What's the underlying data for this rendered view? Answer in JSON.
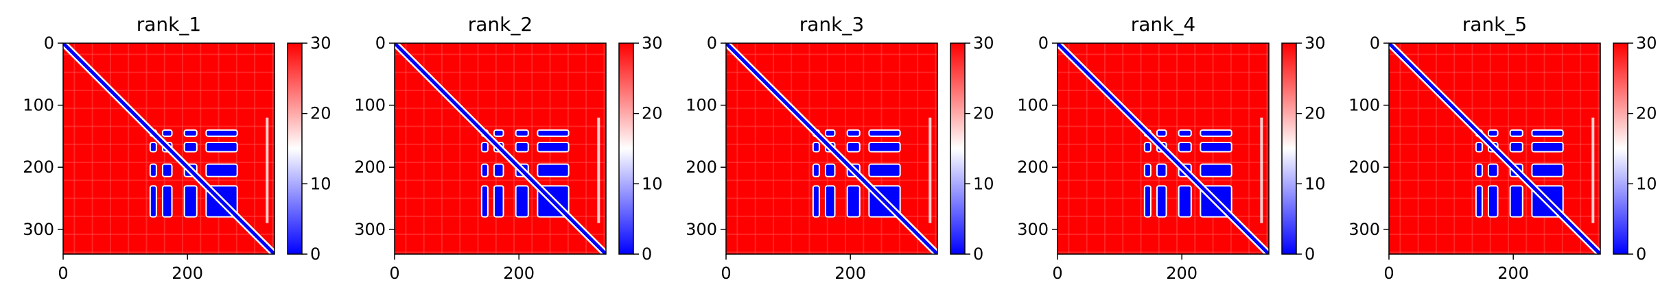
{
  "chart_data": [
    {
      "type": "heatmap",
      "title": "rank_1",
      "xticks": [
        "0",
        "200"
      ],
      "yticks": [
        "0",
        "100",
        "200",
        "300"
      ],
      "size": 340,
      "colorbar": {
        "min": 0,
        "max": 30,
        "ticks": [
          "0",
          "10",
          "20",
          "30"
        ],
        "colormap": "bwr"
      },
      "blocks": [
        [
          120,
          290
        ],
        [
          140,
          150
        ],
        [
          160,
          175
        ],
        [
          195,
          215
        ],
        [
          230,
          280
        ]
      ],
      "gaps": [
        [
          120,
          135
        ],
        [
          155,
          170
        ]
      ]
    },
    {
      "type": "heatmap",
      "title": "rank_2",
      "xticks": [
        "0",
        "200"
      ],
      "yticks": [
        "0",
        "100",
        "200",
        "300"
      ],
      "size": 340,
      "colorbar": {
        "min": 0,
        "max": 30,
        "ticks": [
          "0",
          "10",
          "20",
          "30"
        ],
        "colormap": "bwr"
      },
      "blocks": [
        [
          120,
          290
        ],
        [
          140,
          150
        ],
        [
          160,
          175
        ],
        [
          195,
          215
        ],
        [
          230,
          280
        ]
      ],
      "gaps": [
        [
          120,
          135
        ],
        [
          155,
          170
        ]
      ]
    },
    {
      "type": "heatmap",
      "title": "rank_3",
      "xticks": [
        "0",
        "200"
      ],
      "yticks": [
        "0",
        "100",
        "200",
        "300"
      ],
      "size": 340,
      "colorbar": {
        "min": 0,
        "max": 30,
        "ticks": [
          "0",
          "10",
          "20",
          "30"
        ],
        "colormap": "bwr"
      },
      "blocks": [
        [
          120,
          290
        ],
        [
          140,
          150
        ],
        [
          160,
          175
        ],
        [
          195,
          215
        ],
        [
          230,
          280
        ]
      ],
      "gaps": [
        [
          120,
          135
        ],
        [
          155,
          170
        ]
      ]
    },
    {
      "type": "heatmap",
      "title": "rank_4",
      "xticks": [
        "0",
        "200"
      ],
      "yticks": [
        "0",
        "100",
        "200",
        "300"
      ],
      "size": 340,
      "colorbar": {
        "min": 0,
        "max": 30,
        "ticks": [
          "0",
          "10",
          "20",
          "30"
        ],
        "colormap": "bwr"
      },
      "blocks": [
        [
          120,
          290
        ],
        [
          140,
          150
        ],
        [
          160,
          175
        ],
        [
          195,
          215
        ],
        [
          230,
          280
        ]
      ],
      "gaps": [
        [
          120,
          135
        ],
        [
          155,
          170
        ]
      ]
    },
    {
      "type": "heatmap",
      "title": "rank_5",
      "xticks": [
        "0",
        "200"
      ],
      "yticks": [
        "0",
        "100",
        "200",
        "300"
      ],
      "size": 340,
      "colorbar": {
        "min": 0,
        "max": 30,
        "ticks": [
          "0",
          "10",
          "20",
          "30"
        ],
        "colormap": "bwr"
      },
      "blocks": [
        [
          120,
          290
        ],
        [
          140,
          150
        ],
        [
          160,
          175
        ],
        [
          195,
          215
        ],
        [
          230,
          280
        ]
      ],
      "gaps": [
        [
          120,
          135
        ],
        [
          155,
          170
        ]
      ]
    }
  ],
  "colors": {
    "high": "#ff0000",
    "mid": "#ffffff",
    "low": "#0000ff"
  }
}
